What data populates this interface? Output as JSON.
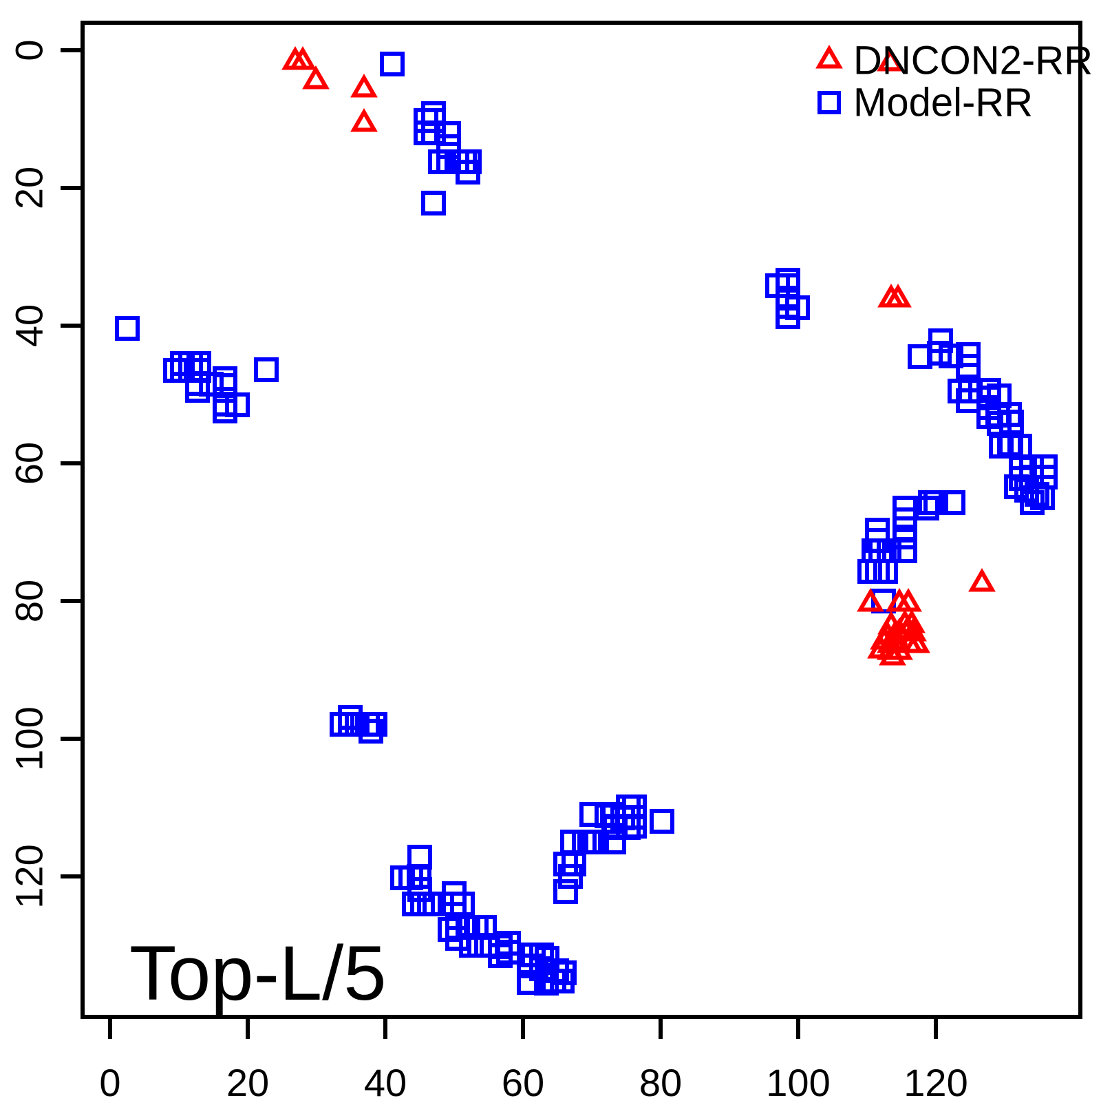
{
  "figure": {
    "background": "#FFFFFF",
    "annotation": "Top-L/5",
    "frame_color": "#000000",
    "legend": {
      "items": [
        {
          "label": "DNCON2-RR",
          "marker": "triangle",
          "color": "#FF0000"
        },
        {
          "label": "Model-RR",
          "marker": "square",
          "color": "#0000FF"
        }
      ]
    }
  },
  "chart_data": {
    "type": "scatter",
    "title": "",
    "xlabel": "",
    "ylabel": "",
    "annotation": "Top-L/5",
    "x_ticks": [
      0,
      20,
      40,
      60,
      80,
      100,
      120
    ],
    "y_ticks": [
      0,
      20,
      40,
      60,
      80,
      100,
      120
    ],
    "xlim": [
      -4,
      141
    ],
    "ylim": [
      -4,
      140.4
    ],
    "y_inverted": true,
    "grid": false,
    "legend_position": "topright",
    "series": [
      {
        "name": "DNCON2-RR",
        "marker": "triangle",
        "color": "#FF0000",
        "points": [
          [
            26.9,
            1.7
          ],
          [
            28.0,
            1.7
          ],
          [
            29.9,
            4.5
          ],
          [
            36.9,
            5.7
          ],
          [
            36.9,
            10.7
          ],
          [
            113.4,
            1.9
          ],
          [
            113.5,
            36.2
          ],
          [
            114.5,
            36.2
          ],
          [
            110.5,
            80.4
          ],
          [
            114.7,
            80.4
          ],
          [
            116.0,
            80.4
          ],
          [
            126.7,
            77.5
          ],
          [
            113.5,
            83.7
          ],
          [
            115.5,
            83.5
          ],
          [
            116.5,
            83.5
          ],
          [
            114.7,
            84.7
          ],
          [
            115.7,
            84.7
          ],
          [
            116.7,
            84.7
          ],
          [
            113.0,
            85.2
          ],
          [
            114.0,
            85.2
          ],
          [
            112.4,
            85.9
          ],
          [
            113.4,
            86.4
          ],
          [
            114.5,
            86.4
          ],
          [
            116.2,
            86.4
          ],
          [
            117.2,
            86.4
          ],
          [
            112.0,
            87.2
          ],
          [
            113.4,
            87.4
          ],
          [
            114.7,
            87.4
          ],
          [
            113.7,
            88.2
          ]
        ]
      },
      {
        "name": "Model-RR",
        "marker": "square",
        "color": "#0000FF",
        "points": [
          [
            41.0,
            2.0
          ],
          [
            47.0,
            9.2
          ],
          [
            45.9,
            10.2
          ],
          [
            47.0,
            10.2
          ],
          [
            45.9,
            12.0
          ],
          [
            47.0,
            12.0
          ],
          [
            49.2,
            12.1
          ],
          [
            49.2,
            14.0
          ],
          [
            48.0,
            16.2
          ],
          [
            49.2,
            16.2
          ],
          [
            50.4,
            16.2
          ],
          [
            51.5,
            16.2
          ],
          [
            52.2,
            16.2
          ],
          [
            52.0,
            17.7
          ],
          [
            47.0,
            22.2
          ],
          [
            2.5,
            40.4
          ],
          [
            10.5,
            45.5
          ],
          [
            11.7,
            45.5
          ],
          [
            12.9,
            45.5
          ],
          [
            9.5,
            46.5
          ],
          [
            10.5,
            46.5
          ],
          [
            11.7,
            46.5
          ],
          [
            12.9,
            46.5
          ],
          [
            12.7,
            48.4
          ],
          [
            14.7,
            48.5
          ],
          [
            12.7,
            49.4
          ],
          [
            16.7,
            47.7
          ],
          [
            16.7,
            48.7
          ],
          [
            16.7,
            51.4
          ],
          [
            16.7,
            52.4
          ],
          [
            18.5,
            51.5
          ],
          [
            22.7,
            46.4
          ],
          [
            98.5,
            33.4
          ],
          [
            97.0,
            34.2
          ],
          [
            98.5,
            34.2
          ],
          [
            98.5,
            36.0
          ],
          [
            98.5,
            37.2
          ],
          [
            99.9,
            37.4
          ],
          [
            98.5,
            38.7
          ],
          [
            117.7,
            44.5
          ],
          [
            120.7,
            42.2
          ],
          [
            120.5,
            44.0
          ],
          [
            122.2,
            44.4
          ],
          [
            124.7,
            44.2
          ],
          [
            124.7,
            45.9
          ],
          [
            123.5,
            49.5
          ],
          [
            125.0,
            49.5
          ],
          [
            124.7,
            50.9
          ],
          [
            127.7,
            49.4
          ],
          [
            127.7,
            50.5
          ],
          [
            127.7,
            51.9
          ],
          [
            129.2,
            50.2
          ],
          [
            127.7,
            53.2
          ],
          [
            129.0,
            53.0
          ],
          [
            130.7,
            52.9
          ],
          [
            131.0,
            54.0
          ],
          [
            129.2,
            54.2
          ],
          [
            130.7,
            57.2
          ],
          [
            129.5,
            57.5
          ],
          [
            130.9,
            57.5
          ],
          [
            132.2,
            57.5
          ],
          [
            132.4,
            60.7
          ],
          [
            133.9,
            60.5
          ],
          [
            135.9,
            60.5
          ],
          [
            132.4,
            62.2
          ],
          [
            133.9,
            62.0
          ],
          [
            135.9,
            62.0
          ],
          [
            131.7,
            63.4
          ],
          [
            133.2,
            63.9
          ],
          [
            134.7,
            64.5
          ],
          [
            135.5,
            65.0
          ],
          [
            134.0,
            65.7
          ],
          [
            119.2,
            65.7
          ],
          [
            120.0,
            65.7
          ],
          [
            122.5,
            65.7
          ],
          [
            118.7,
            66.5
          ],
          [
            115.5,
            66.5
          ],
          [
            115.5,
            68.2
          ],
          [
            115.5,
            69.5
          ],
          [
            115.5,
            70.7
          ],
          [
            111.5,
            69.7
          ],
          [
            111.5,
            71.2
          ],
          [
            111.0,
            72.7
          ],
          [
            112.0,
            72.7
          ],
          [
            113.2,
            72.7
          ],
          [
            115.5,
            72.7
          ],
          [
            110.4,
            75.7
          ],
          [
            111.5,
            75.7
          ],
          [
            112.7,
            75.7
          ],
          [
            112.4,
            80.0
          ],
          [
            34.9,
            96.9
          ],
          [
            33.7,
            97.9
          ],
          [
            34.9,
            97.9
          ],
          [
            35.9,
            97.9
          ],
          [
            37.4,
            97.9
          ],
          [
            38.5,
            97.9
          ],
          [
            37.9,
            98.9
          ],
          [
            45.0,
            117.2
          ],
          [
            42.5,
            120.2
          ],
          [
            43.7,
            120.2
          ],
          [
            44.9,
            120.0
          ],
          [
            45.0,
            121.9
          ],
          [
            44.2,
            124.0
          ],
          [
            45.4,
            124.0
          ],
          [
            46.4,
            124.0
          ],
          [
            50.0,
            122.5
          ],
          [
            50.0,
            124.0
          ],
          [
            51.2,
            124.0
          ],
          [
            49.4,
            127.7
          ],
          [
            50.5,
            127.4
          ],
          [
            52.0,
            127.4
          ],
          [
            53.2,
            127.4
          ],
          [
            54.4,
            127.4
          ],
          [
            50.5,
            129.0
          ],
          [
            52.5,
            130.0
          ],
          [
            53.7,
            130.0
          ],
          [
            54.7,
            130.0
          ],
          [
            56.7,
            130.2
          ],
          [
            57.9,
            129.7
          ],
          [
            57.9,
            131.0
          ],
          [
            56.7,
            131.5
          ],
          [
            61.5,
            131.4
          ],
          [
            62.7,
            131.4
          ],
          [
            63.5,
            131.9
          ],
          [
            60.9,
            133.0
          ],
          [
            62.7,
            133.4
          ],
          [
            64.9,
            133.7
          ],
          [
            66.0,
            134.0
          ],
          [
            60.9,
            135.4
          ],
          [
            63.4,
            135.5
          ],
          [
            64.5,
            135.2
          ],
          [
            65.7,
            135.2
          ],
          [
            70.0,
            111.0
          ],
          [
            72.2,
            111.2
          ],
          [
            73.2,
            111.0
          ],
          [
            74.5,
            111.5
          ],
          [
            75.3,
            109.9
          ],
          [
            75.3,
            111.4
          ],
          [
            75.3,
            112.9
          ],
          [
            73.2,
            112.9
          ],
          [
            76.2,
            109.9
          ],
          [
            76.2,
            111.4
          ],
          [
            76.2,
            112.7
          ],
          [
            73.4,
            112.7
          ],
          [
            67.2,
            115.0
          ],
          [
            68.9,
            115.0
          ],
          [
            69.7,
            115.0
          ],
          [
            70.7,
            115.0
          ],
          [
            73.2,
            115.0
          ],
          [
            66.2,
            118.2
          ],
          [
            67.4,
            118.2
          ],
          [
            66.9,
            120.0
          ],
          [
            66.2,
            122.2
          ],
          [
            80.2,
            112.0
          ]
        ]
      }
    ]
  }
}
